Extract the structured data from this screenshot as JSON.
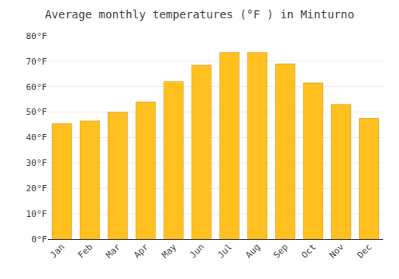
{
  "chart_data": {
    "type": "bar",
    "title": "Average monthly temperatures (°F ) in Minturno",
    "categories": [
      "Jan",
      "Feb",
      "Mar",
      "Apr",
      "May",
      "Jun",
      "Jul",
      "Aug",
      "Sep",
      "Oct",
      "Nov",
      "Dec"
    ],
    "values": [
      45.5,
      46.5,
      50.0,
      54.0,
      62.0,
      68.5,
      73.5,
      73.5,
      69.0,
      61.5,
      53.0,
      47.5
    ],
    "color": "#FFC020",
    "ylim": [
      0,
      80
    ],
    "yticks": [
      {
        "value": 0,
        "label": "0°F"
      },
      {
        "value": 10,
        "label": "10°F"
      },
      {
        "value": 20,
        "label": "20°F"
      },
      {
        "value": 30,
        "label": "30°F"
      },
      {
        "value": 40,
        "label": "40°F"
      },
      {
        "value": 50,
        "label": "50°F"
      },
      {
        "value": 60,
        "label": "60°F"
      },
      {
        "value": 70,
        "label": "70°F"
      },
      {
        "value": 80,
        "label": "80°F"
      }
    ],
    "grid": true
  }
}
